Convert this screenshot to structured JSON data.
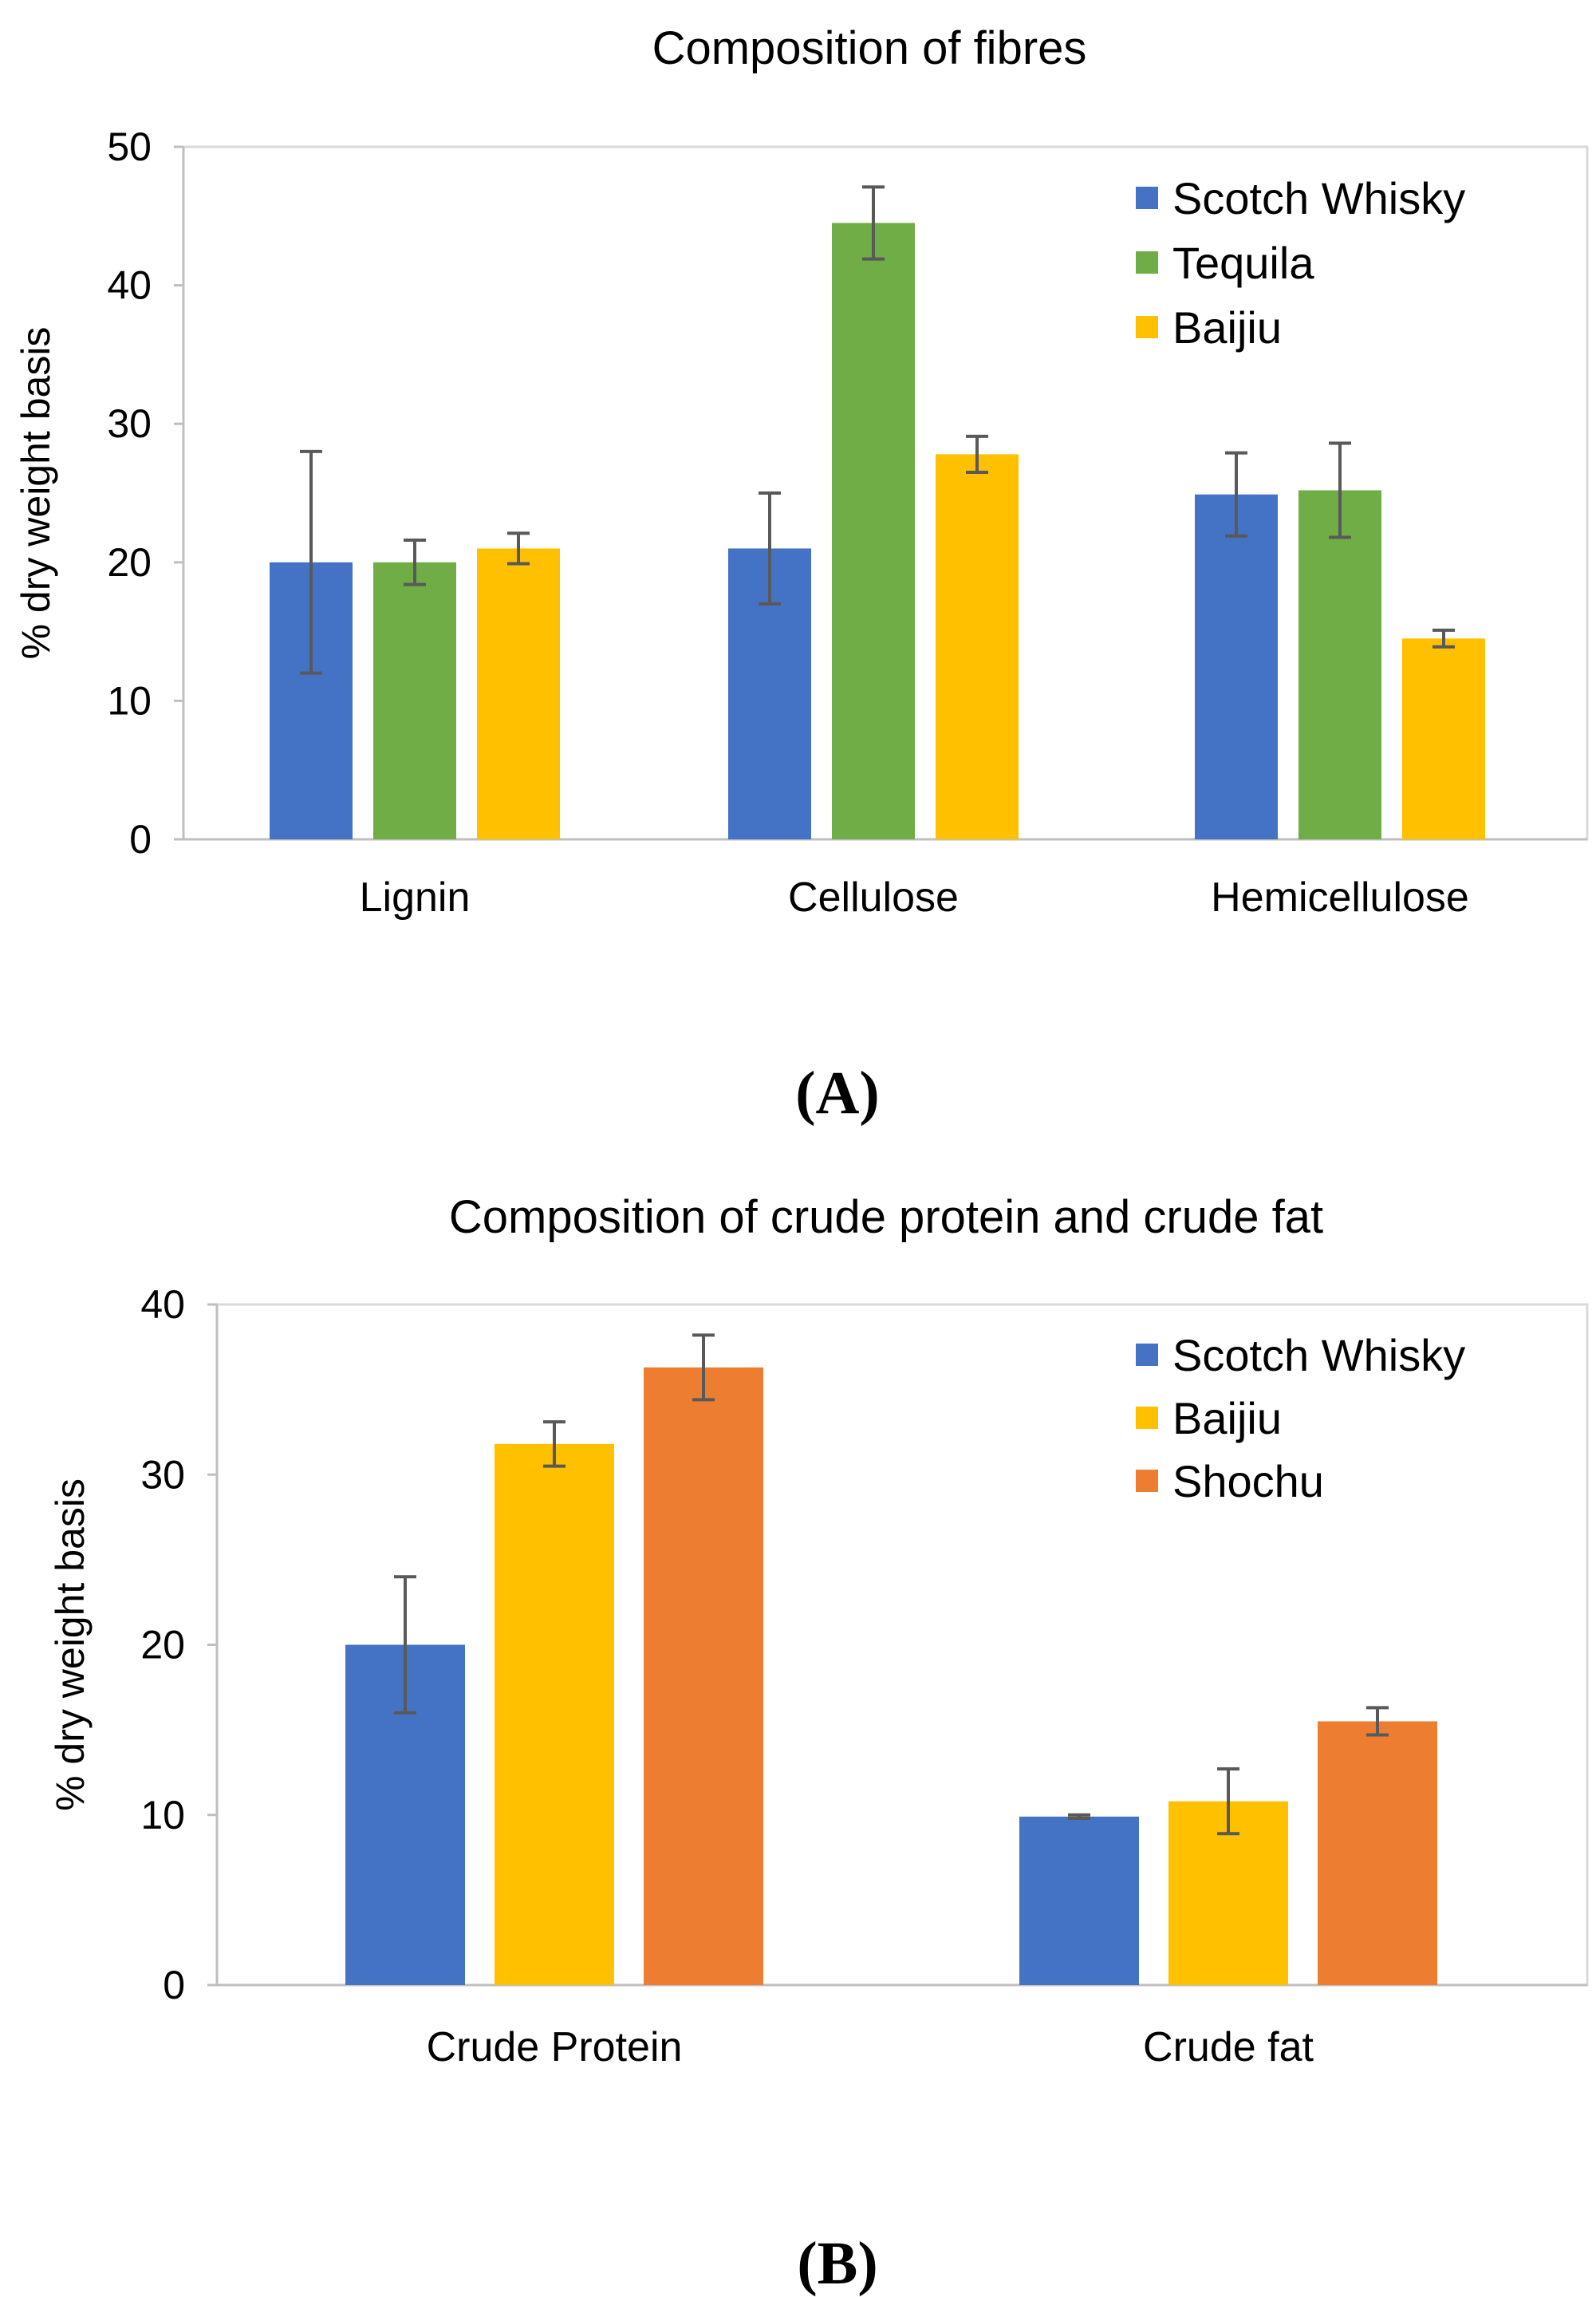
{
  "chart_data": [
    {
      "type": "bar",
      "panel_label": "(A)",
      "title": "Composition of fibres",
      "xlabel": "",
      "ylabel": "% dry weight basis",
      "ylim": [
        0,
        50
      ],
      "yticks": [
        0,
        10,
        20,
        30,
        40,
        50
      ],
      "categories": [
        "Lignin",
        "Cellulose",
        "Hemicellulose"
      ],
      "legend_position": "top-right",
      "series": [
        {
          "name": "Scotch Whisky",
          "color": "#4472C4",
          "values": [
            20,
            21,
            24.9
          ],
          "errors": [
            8,
            4,
            3
          ]
        },
        {
          "name": "Tequila",
          "color": "#70AD47",
          "values": [
            20,
            44.5,
            25.2
          ],
          "errors": [
            1.6,
            2.6,
            3.4
          ]
        },
        {
          "name": "Baijiu",
          "color": "#FFC000",
          "values": [
            21,
            27.8,
            14.5
          ],
          "errors": [
            1.1,
            1.3,
            0.6
          ]
        }
      ]
    },
    {
      "type": "bar",
      "panel_label": "(B)",
      "title": "Composition of crude protein and crude fat",
      "xlabel": "",
      "ylabel": "% dry weight basis",
      "ylim": [
        0,
        40
      ],
      "yticks": [
        0,
        10,
        20,
        30,
        40
      ],
      "categories": [
        "Crude Protein",
        "Crude fat"
      ],
      "legend_position": "top-right",
      "series": [
        {
          "name": "Scotch Whisky",
          "color": "#4472C4",
          "values": [
            20,
            9.9
          ],
          "errors": [
            4,
            0.1
          ]
        },
        {
          "name": "Baijiu",
          "color": "#FFC000",
          "values": [
            31.8,
            10.8
          ],
          "errors": [
            1.3,
            1.9
          ]
        },
        {
          "name": "Shochu",
          "color": "#ED7D31",
          "values": [
            36.3,
            15.5
          ],
          "errors": [
            1.9,
            0.8
          ]
        }
      ]
    }
  ]
}
